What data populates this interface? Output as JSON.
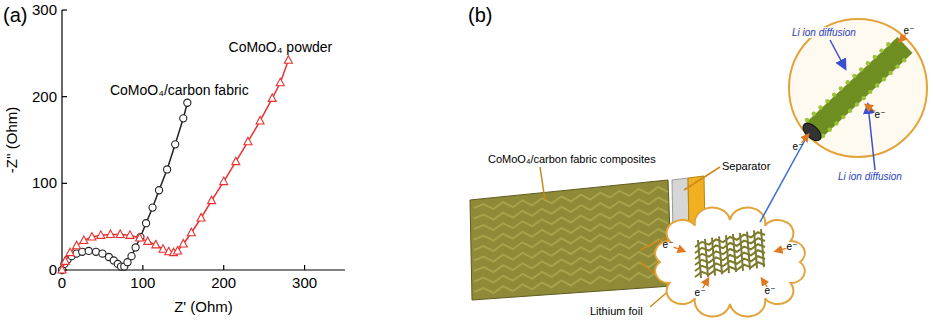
{
  "chart_data": {
    "type": "line",
    "title": "(a)",
    "x_label": "Z' (Ohm)",
    "y_label": "-Z'' (Ohm)",
    "xlim": [
      0,
      350
    ],
    "xticks": [
      0,
      100,
      200,
      300
    ],
    "ylim": [
      0,
      300
    ],
    "yticks": [
      0,
      100,
      200,
      300
    ],
    "grid": false,
    "series": [
      {
        "name": "CoMoO₄/carbon fabric",
        "color": "#222222",
        "marker": "circle",
        "line_style": "solid",
        "x": [
          0,
          3,
          7,
          12,
          18,
          25,
          33,
          42,
          50,
          58,
          64,
          69,
          73,
          77,
          81,
          86,
          91,
          97,
          104,
          112,
          120,
          130,
          140,
          150,
          155
        ],
        "values": [
          0,
          7,
          12,
          16,
          19,
          21,
          22,
          21,
          19,
          15,
          11,
          7,
          4,
          4,
          9,
          16,
          26,
          38,
          54,
          72,
          92,
          116,
          145,
          175,
          193
        ]
      },
      {
        "name": "CoMoO₄ powder",
        "color": "#e8312f",
        "marker": "triangle",
        "line_style": "solid",
        "x": [
          0,
          4,
          10,
          18,
          27,
          37,
          48,
          60,
          72,
          84,
          96,
          106,
          116,
          125,
          132,
          138,
          143,
          150,
          160,
          172,
          185,
          200,
          215,
          230,
          245,
          260,
          270,
          280
        ],
        "values": [
          0,
          10,
          20,
          28,
          34,
          38,
          40,
          41,
          41,
          40,
          37,
          33,
          29,
          24,
          21,
          20,
          22,
          30,
          43,
          60,
          80,
          102,
          125,
          148,
          172,
          198,
          216,
          242
        ]
      }
    ]
  },
  "diagram": {
    "panel_label": "(b)",
    "labels": {
      "composite": "CoMoO₄/carbon fabric composites",
      "separator": "Separator",
      "lithium_foil": "Lithium foil"
    },
    "li_ion_diffusion": [
      "Li ion diffusion",
      "Li ion diffusion"
    ],
    "electrons": [
      "e⁻",
      "e⁻",
      "e⁻",
      "e⁻",
      "e⁻",
      "e⁻",
      "e⁻"
    ]
  }
}
